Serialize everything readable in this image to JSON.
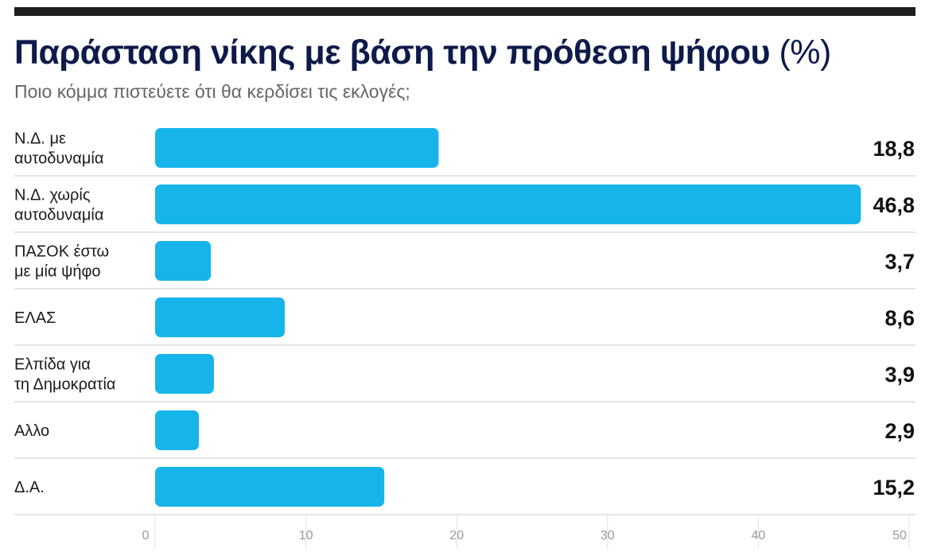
{
  "title": "Παράσταση νίκης με βάση την πρόθεση ψήφου",
  "title_unit": "(%)",
  "subtitle": "Ποιο κόμμα πιστεύετε ότι θα κερδίσει τις εκλογές;",
  "colors": {
    "bar": "#17b4ea",
    "title": "#0d1a4a",
    "top_bar": "#1e1e1e"
  },
  "chart_data": {
    "type": "bar",
    "orientation": "horizontal",
    "title": "Παράσταση νίκης με βάση την πρόθεση ψήφου (%)",
    "subtitle": "Ποιο κόμμα πιστεύετε ότι θα κερδίσει τις εκλογές;",
    "categories": [
      [
        "Ν.Δ. με",
        "αυτοδυναμία"
      ],
      [
        "Ν.Δ. χωρίς",
        "αυτοδυναμία"
      ],
      [
        "ΠΑΣΟΚ έστω",
        "με μία ψήφο"
      ],
      [
        "ΕΛΑΣ"
      ],
      [
        "Ελπίδα για",
        "τη Δημοκρατία"
      ],
      [
        "Αλλο"
      ],
      [
        "Δ.Α."
      ]
    ],
    "values": [
      18.8,
      46.8,
      3.7,
      8.6,
      3.9,
      2.9,
      15.2
    ],
    "value_labels": [
      "18,8",
      "46,8",
      "3,7",
      "8,6",
      "3,9",
      "2,9",
      "15,2"
    ],
    "xlim": [
      0,
      50
    ],
    "xticks": [
      0,
      10,
      20,
      30,
      40,
      50
    ],
    "xlabel": "",
    "ylabel": "",
    "grid": "vertical"
  }
}
